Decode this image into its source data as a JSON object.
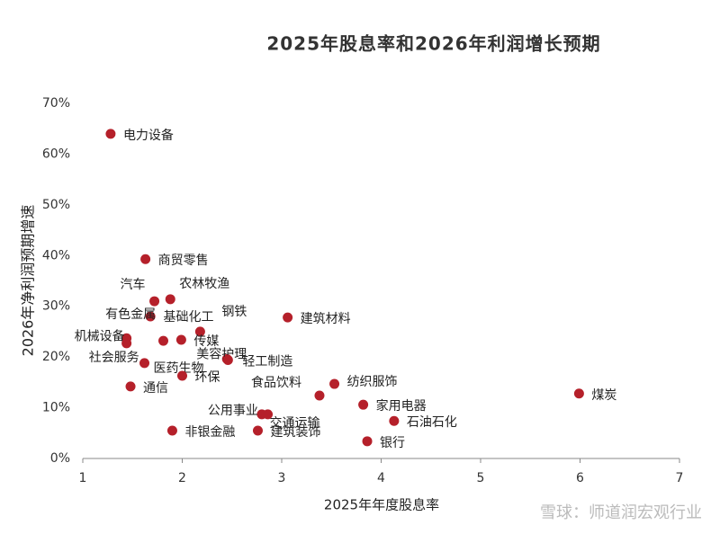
{
  "chart_data": {
    "type": "scatter",
    "title": "2025年股息率和2026年利润增长预期",
    "x_label": "2025年年度股息率",
    "y_label": "2026年净利润预期增速",
    "watermark": "雪球：师道润宏观行业",
    "color": "#b5202a",
    "point_labels": [
      "电力设备",
      "商贸零售",
      "汽车",
      "农林牧渔",
      "有色金属",
      "基础化工",
      "钢铁",
      "传媒",
      "机械设备",
      "社会服务",
      "医药生物",
      "美容护理",
      "轻工制造",
      "环保",
      "通信",
      "建筑材料",
      "食品饮料",
      "纺织服饰",
      "家用电器",
      "公用事业",
      "交通运输",
      "石油石化",
      "非银金融",
      "建筑装饰",
      "银行",
      "煤炭"
    ],
    "x": [
      1.28,
      1.63,
      1.72,
      1.88,
      1.68,
      1.81,
      2.18,
      1.99,
      1.44,
      1.44,
      1.62,
      2.45,
      2.46,
      2.0,
      1.48,
      3.06,
      3.38,
      3.53,
      3.82,
      2.8,
      2.86,
      4.13,
      1.9,
      2.76,
      3.86,
      5.99
    ],
    "values": [
      64.0,
      39.3,
      31.0,
      31.4,
      28.0,
      23.2,
      25.0,
      23.4,
      23.7,
      22.7,
      18.8,
      19.6,
      19.4,
      16.3,
      14.2,
      27.8,
      12.4,
      14.7,
      10.6,
      8.7,
      8.7,
      7.4,
      5.5,
      5.5,
      3.4,
      12.8
    ],
    "xlim": [
      1,
      7
    ],
    "xticks": [
      1,
      2,
      3,
      4,
      5,
      6,
      7
    ],
    "ylim": [
      0,
      70
    ],
    "yticks": [
      {
        "value": 0,
        "label": "0%"
      },
      {
        "value": 10,
        "label": "10%"
      },
      {
        "value": 20,
        "label": "20%"
      },
      {
        "value": 30,
        "label": "30%"
      },
      {
        "value": 40,
        "label": "40%"
      },
      {
        "value": 50,
        "label": "50%"
      },
      {
        "value": 60,
        "label": "60%"
      },
      {
        "value": 70,
        "label": "70%"
      }
    ]
  }
}
